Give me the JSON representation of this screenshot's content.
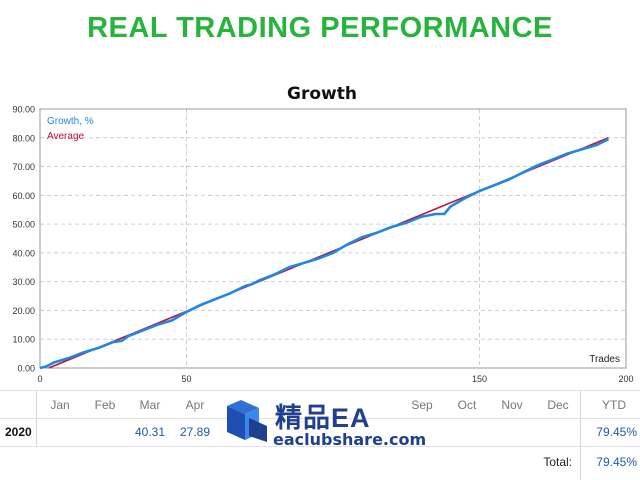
{
  "header": {
    "title": "REAL TRADING PERFORMANCE"
  },
  "colors": {
    "headline": "#27b43c",
    "growth": "#1e88e5",
    "average": "#c8102e"
  },
  "chart_data": {
    "type": "line",
    "title": "Growth",
    "xlabel": "Trades",
    "ylabel": "",
    "xlim": [
      0,
      200
    ],
    "ylim": [
      0,
      90
    ],
    "xticks": [
      0,
      50,
      150,
      200
    ],
    "yticks": [
      0,
      10,
      20,
      30,
      40,
      50,
      60,
      70,
      80,
      90
    ],
    "xtick_labels": [
      "0",
      "50",
      "150",
      "200"
    ],
    "ytick_labels": [
      "0.00",
      "10.00",
      "20.00",
      "30.00",
      "40.00",
      "50.00",
      "60.00",
      "70.00",
      "80.00",
      "90.00"
    ],
    "grid": true,
    "legend_position": "top-left",
    "series": [
      {
        "name": "Growth, %",
        "x": [
          0,
          2,
          5,
          10,
          15,
          20,
          25,
          28,
          30,
          35,
          40,
          45,
          50,
          55,
          60,
          65,
          70,
          72,
          75,
          80,
          85,
          90,
          95,
          100,
          105,
          110,
          115,
          120,
          125,
          130,
          135,
          138,
          140,
          145,
          150,
          155,
          160,
          165,
          170,
          175,
          180,
          185,
          190,
          194
        ],
        "y": [
          0,
          0.5,
          2,
          3.5,
          5.5,
          7,
          9,
          9.5,
          11,
          13,
          15,
          16.5,
          19.5,
          22,
          24,
          26,
          28.5,
          29,
          30.5,
          32.5,
          35,
          36.5,
          38,
          40,
          43,
          45.5,
          47,
          49,
          50.5,
          52.5,
          53.5,
          53.5,
          56,
          59,
          61.5,
          63.5,
          65.5,
          68,
          70.5,
          72.5,
          74.5,
          76,
          77.5,
          79.5
        ]
      },
      {
        "name": "Average",
        "x": [
          3,
          194
        ],
        "y": [
          0,
          80
        ]
      }
    ]
  },
  "months_table": {
    "headers": [
      "Jan",
      "Feb",
      "Mar",
      "Apr",
      "Sep",
      "Oct",
      "Nov",
      "Dec",
      "YTD"
    ],
    "year": "2020",
    "values": {
      "mar": "40.31",
      "apr": "27.89",
      "ytd": "79.45%"
    },
    "total_label": "Total:",
    "total_value": "79.45%"
  },
  "watermark": {
    "brand_cn": "精品EA",
    "url": "eaclubshare.com"
  }
}
